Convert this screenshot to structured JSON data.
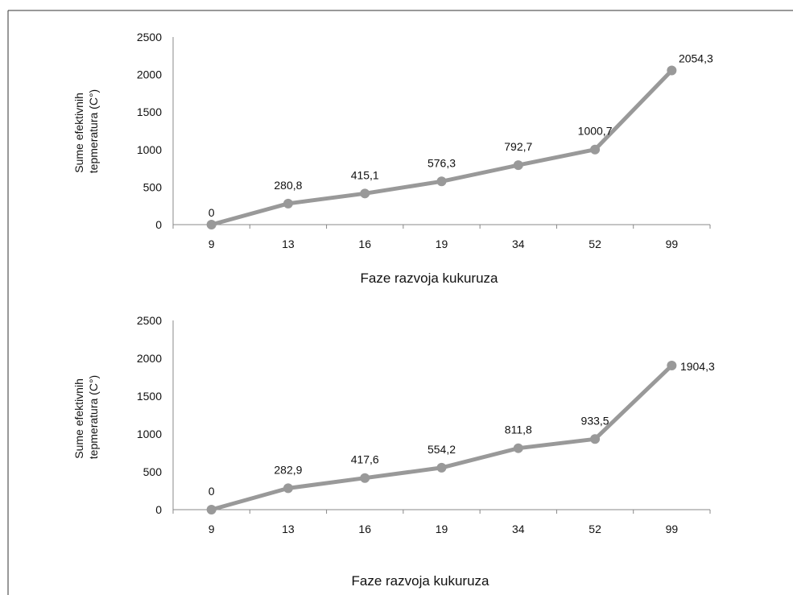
{
  "chart_data": [
    {
      "type": "line",
      "categories": [
        "9",
        "13",
        "16",
        "19",
        "34",
        "52",
        "99"
      ],
      "series": [
        {
          "values": [
            0,
            280.8,
            415.1,
            576.3,
            792.7,
            1000.7,
            2054.3
          ]
        }
      ],
      "data_labels": [
        "0",
        "280,8",
        "415,1",
        "576,3",
        "792,7",
        "1000,7",
        "2054,3"
      ],
      "y_ticks": [
        "0",
        "500",
        "1000",
        "1500",
        "2000",
        "2500"
      ],
      "ylim": [
        0,
        2500
      ],
      "xlabel": "Faze razvoja kukuruza",
      "ylabel_line1": "Sume efektivnih",
      "ylabel_line2": "tepmeratura (C°)",
      "grid": false,
      "line_color": "#999999"
    },
    {
      "type": "line",
      "categories": [
        "9",
        "13",
        "16",
        "19",
        "34",
        "52",
        "99"
      ],
      "series": [
        {
          "values": [
            0,
            282.9,
            417.6,
            554.2,
            811.8,
            933.5,
            1904.3
          ]
        }
      ],
      "data_labels": [
        "0",
        "282,9",
        "417,6",
        "554,2",
        "811,8",
        "933,5",
        "1904,3"
      ],
      "y_ticks": [
        "0",
        "500",
        "1000",
        "1500",
        "2000",
        "2500"
      ],
      "ylim": [
        0,
        2500
      ],
      "xlabel": "Faze razvoja kukuruza",
      "ylabel_line1": "Sume efektivnih",
      "ylabel_line2": "tepmeratura (C°)",
      "grid": false,
      "line_color": "#999999"
    }
  ]
}
